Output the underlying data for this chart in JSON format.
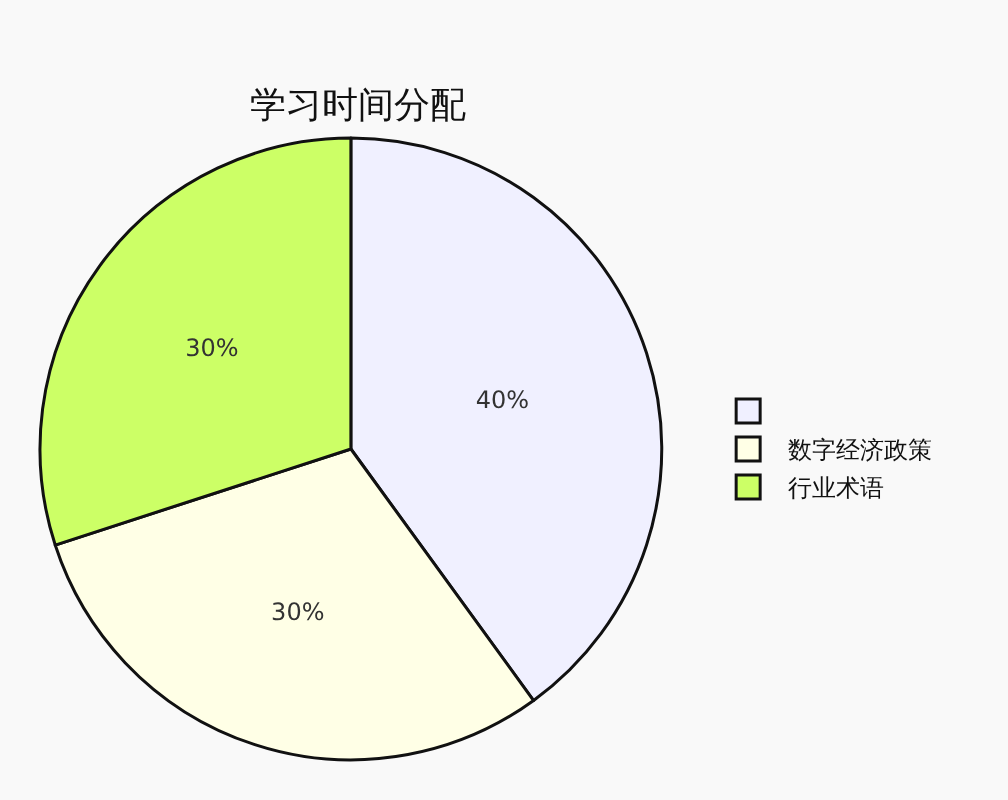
{
  "chart_data": {
    "type": "pie",
    "title": "学习时间分配",
    "categories": [
      null,
      "数字经济政策",
      "行业术语"
    ],
    "values": [
      40,
      30,
      30
    ],
    "value_labels": [
      "40%",
      "30%",
      "30%"
    ],
    "colors": [
      "#f0f0ff",
      "#ffffe6",
      "#ccff66"
    ],
    "legend": "right"
  }
}
